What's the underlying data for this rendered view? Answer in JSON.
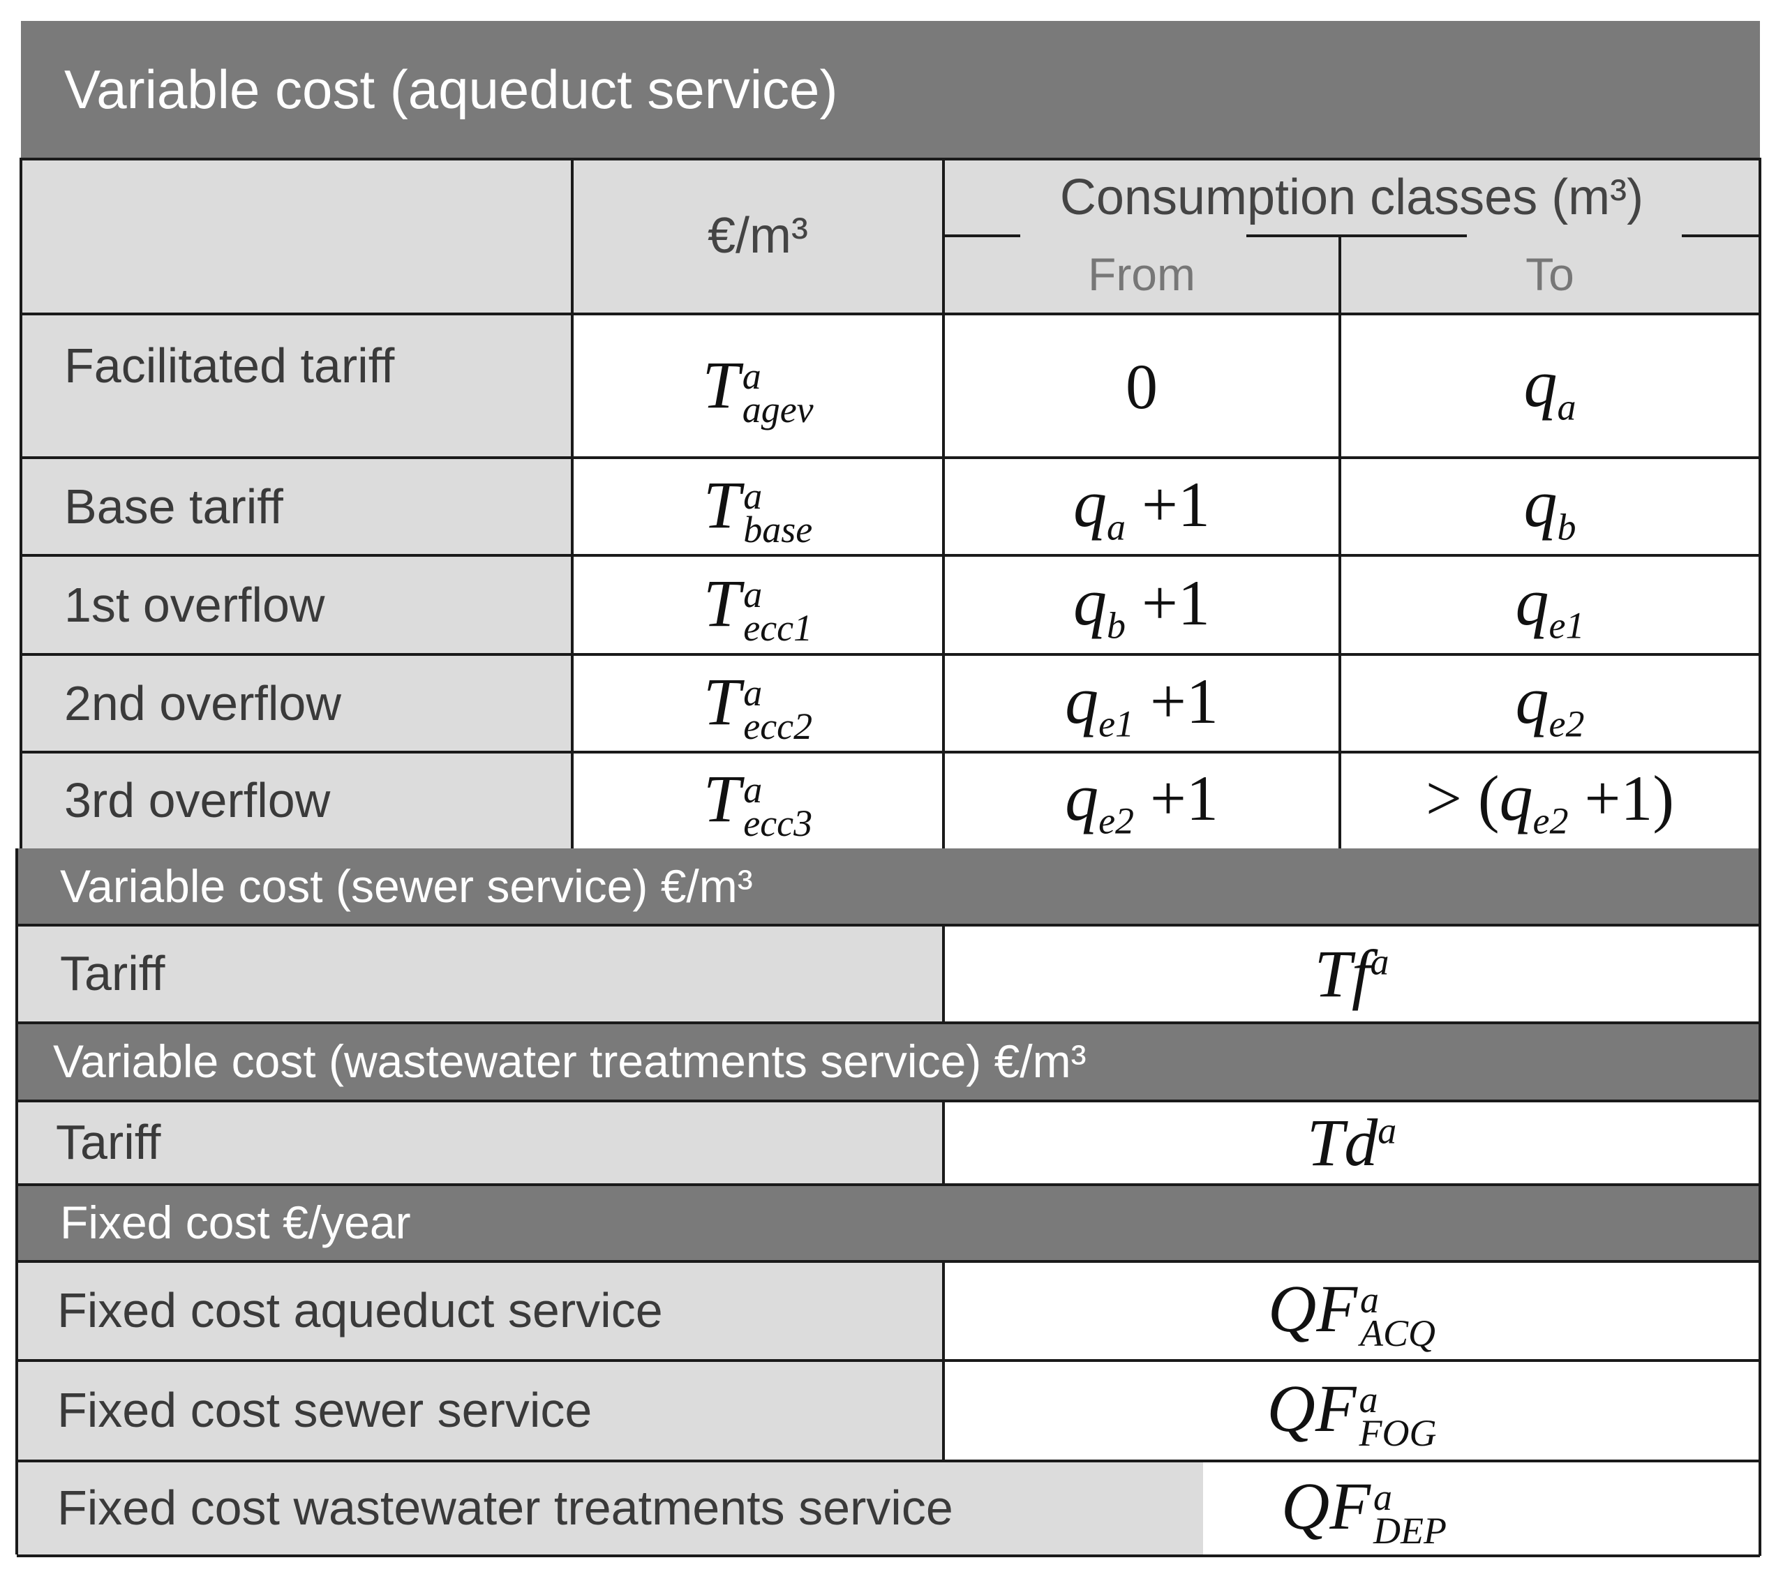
{
  "aqueduct": {
    "title": "Variable cost (aqueduct service)",
    "col_unit": "€/m³",
    "col_classes": "Consumption classes (m³)",
    "col_from": "From",
    "col_to": "To",
    "rows": [
      {
        "label": "Facilitated tariff",
        "sym_base": "T",
        "sym_sup": "a",
        "sym_sub": "agev",
        "from_num": "0",
        "from_var": "",
        "from_sub": "",
        "to_var": "q",
        "to_sub": "a",
        "to_prefix": "",
        "to_suffix": ""
      },
      {
        "label": "Base tariff",
        "sym_base": "T",
        "sym_sup": "a",
        "sym_sub": "base",
        "from_num": "",
        "from_var": "q",
        "from_sub": "a",
        "from_plus": "+1",
        "to_var": "q",
        "to_sub": "b",
        "to_prefix": "",
        "to_suffix": ""
      },
      {
        "label": "1st overflow",
        "sym_base": "T",
        "sym_sup": "a",
        "sym_sub": "ecc1",
        "from_num": "",
        "from_var": "q",
        "from_sub": "b",
        "from_plus": "+1",
        "to_var": "q",
        "to_sub": "e1",
        "to_prefix": "",
        "to_suffix": ""
      },
      {
        "label": "2nd overflow",
        "sym_base": "T",
        "sym_sup": "a",
        "sym_sub": "ecc2",
        "from_num": "",
        "from_var": "q",
        "from_sub": "e1",
        "from_plus": "+1",
        "to_var": "q",
        "to_sub": "e2",
        "to_prefix": "",
        "to_suffix": ""
      },
      {
        "label": "3rd overflow",
        "sym_base": "T",
        "sym_sup": "a",
        "sym_sub": "ecc3",
        "from_num": "",
        "from_var": "q",
        "from_sub": "e2",
        "from_plus": "+1",
        "to_var": "q",
        "to_sub": "e2",
        "to_prefix": "> (",
        "to_suffix": " +1)"
      }
    ]
  },
  "sewer": {
    "title": "Variable cost (sewer service) €/m³",
    "label": "Tariff",
    "sym_base": "Tf",
    "sym_sup": "a"
  },
  "wastewater": {
    "title": "Variable cost (wastewater treatments service) €/m³",
    "label": "Tariff",
    "sym_base": "Td",
    "sym_sup": "a"
  },
  "fixed": {
    "title": "Fixed cost €/year",
    "rows": [
      {
        "label": "Fixed cost aqueduct service",
        "sym_base": "QF",
        "sym_sup": "a",
        "sym_sub": "ACQ"
      },
      {
        "label": "Fixed cost sewer service",
        "sym_base": "QF",
        "sym_sup": "a",
        "sym_sub": "FOG"
      },
      {
        "label": "Fixed cost wastewater treatments service",
        "sym_base": "QF",
        "sym_sup": "a",
        "sym_sub": "DEP"
      }
    ]
  },
  "colors": {
    "band": "#7a7a7a",
    "label_bg": "#dcdcdc",
    "border": "#1a1a1a"
  }
}
